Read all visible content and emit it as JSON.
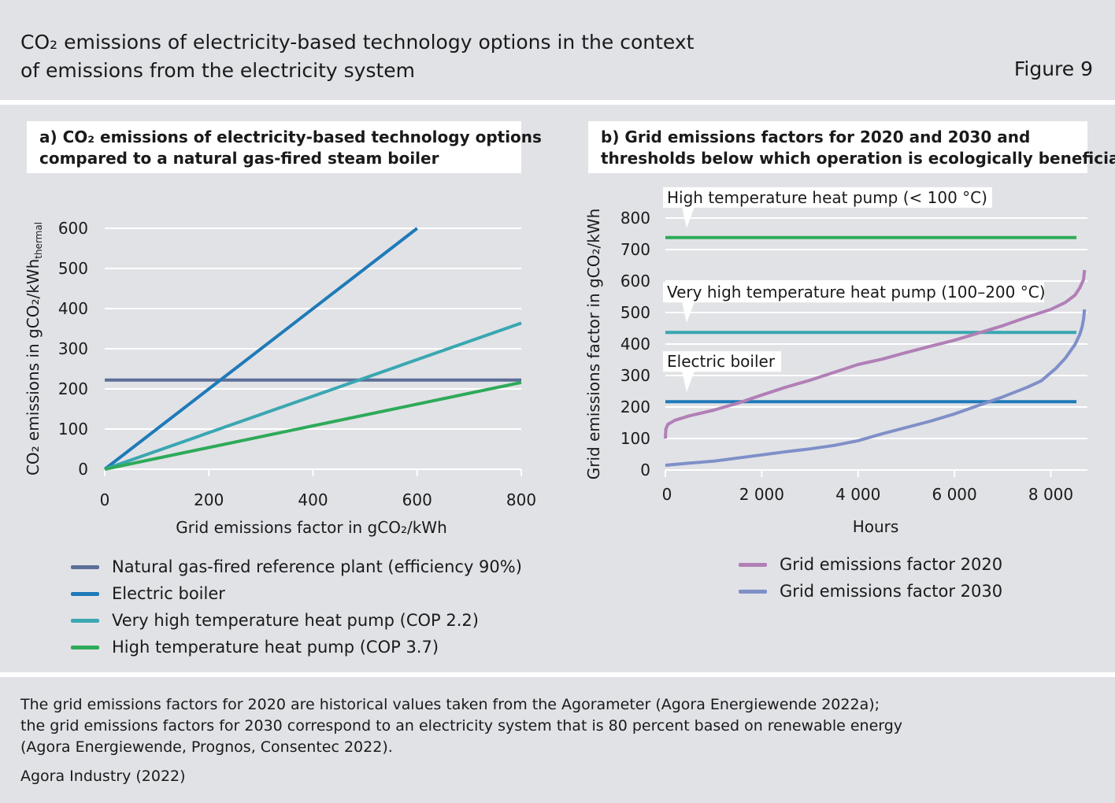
{
  "header": {
    "title_lines": [
      "CO₂ emissions of electricity-based technology options in the context",
      "of emissions from the electricity system"
    ],
    "figure_label": "Figure 9"
  },
  "colors": {
    "background": "#e1e2e6",
    "gas_reference": "#5b6f98",
    "electric_boiler": "#1f7ab8",
    "vhthp": "#3aa7b1",
    "hthp": "#2eaa5a",
    "grid_2020": "#b17fb6",
    "grid_2030": "#7f8fc8"
  },
  "chart_data": [
    {
      "type": "line",
      "title_lines": [
        "a) CO₂ emissions of electricity-based technology options",
        "compared to a natural gas-fired steam boiler"
      ],
      "xlabel": "Grid emissions factor in gCO₂/kWh",
      "ylabel": "CO₂ emissions in gCO₂/kWh",
      "ylabel_subscript": "thermal",
      "xlim": [
        0,
        800
      ],
      "ylim": [
        0,
        600
      ],
      "x_ticks": [
        "0",
        "200",
        "400",
        "600",
        "800"
      ],
      "y_ticks": [
        "0",
        "100",
        "200",
        "300",
        "400",
        "500",
        "600"
      ],
      "grid": "horizontal",
      "legend_position": "bottom",
      "series": [
        {
          "name": "Natural gas-fired reference plant (efficiency 90%)",
          "color": "#5b6f98",
          "x": [
            0,
            800
          ],
          "y": [
            222,
            222
          ]
        },
        {
          "name": "Electric boiler",
          "color": "#1f7ab8",
          "x": [
            0,
            600
          ],
          "y": [
            0,
            600
          ]
        },
        {
          "name": "Very high temperature heat pump (COP 2.2)",
          "color": "#3aa7b1",
          "x": [
            0,
            800
          ],
          "y": [
            0,
            364
          ]
        },
        {
          "name": "High temperature heat pump (COP 3.7)",
          "color": "#2eaa5a",
          "x": [
            0,
            800
          ],
          "y": [
            0,
            216
          ]
        }
      ]
    },
    {
      "type": "line",
      "title_lines": [
        "b) Grid emissions factors for 2020 and 2030 and",
        "thresholds below which operation is ecologically beneficial"
      ],
      "xlabel": "Hours",
      "ylabel": "Grid emissions factor in gCO₂/kWh",
      "xlim": [
        0,
        8760
      ],
      "ylim": [
        0,
        800
      ],
      "x_ticks": [
        "0",
        "2 000",
        "4 000",
        "6 000",
        "8 000"
      ],
      "y_ticks": [
        "0",
        "100",
        "200",
        "300",
        "400",
        "500",
        "600",
        "700",
        "800"
      ],
      "grid": "horizontal",
      "legend_position": "bottom",
      "thresholds": [
        {
          "label": "High temperature heat pump (< 100 °C)",
          "color": "#2eaa5a",
          "y": 738
        },
        {
          "label": "Very high temperature heat pump (100–200 °C)",
          "color": "#3aa7b1",
          "y": 437
        },
        {
          "label": "Electric boiler",
          "color": "#1f7ab8",
          "y": 217
        }
      ],
      "series": [
        {
          "name": "Grid emissions factor 2020",
          "color": "#b17fb6",
          "x": [
            0,
            10,
            50,
            200,
            500,
            1000,
            1500,
            2000,
            2500,
            3000,
            3500,
            4000,
            4500,
            5000,
            5500,
            6000,
            6500,
            7000,
            7500,
            8000,
            8300,
            8500,
            8600,
            8680,
            8700
          ],
          "y": [
            100,
            130,
            145,
            158,
            172,
            190,
            212,
            238,
            263,
            285,
            310,
            335,
            352,
            373,
            393,
            412,
            435,
            458,
            485,
            510,
            532,
            555,
            578,
            605,
            635
          ]
        },
        {
          "name": "Grid emissions factor 2030",
          "color": "#7f8fc8",
          "x": [
            0,
            500,
            1000,
            1500,
            2000,
            2500,
            3000,
            3500,
            4000,
            4500,
            5000,
            5500,
            6000,
            6500,
            7000,
            7500,
            7800,
            8100,
            8300,
            8500,
            8600,
            8650,
            8680,
            8700
          ],
          "y": [
            15,
            22,
            28,
            38,
            48,
            58,
            67,
            78,
            93,
            115,
            135,
            155,
            178,
            205,
            232,
            262,
            283,
            322,
            355,
            398,
            430,
            455,
            480,
            510
          ]
        }
      ]
    }
  ],
  "footer": {
    "note_lines": [
      "The grid emissions factors for 2020 are historical values taken from the Agorameter (Agora Energiewende 2022a);",
      "the grid emissions factors for 2030 correspond to an electricity system that is 80 percent based on renewable energy",
      "(Agora Energiewende, Prognos, Consentec 2022)."
    ],
    "source": "Agora Industry (2022)"
  }
}
